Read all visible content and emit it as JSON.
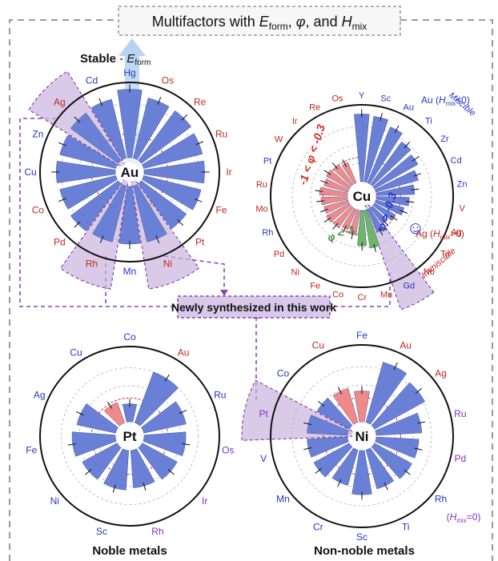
{
  "header": {
    "title": "Multifactors with ",
    "t_E": "E",
    "t_Esub": "form",
    "t_sep1": ", ",
    "t_phi": "φ",
    "t_sep2": ", and ",
    "t_H": "H",
    "t_Hsub": "mix"
  },
  "stable": {
    "label": "Stable",
    "minus": " - ",
    "E": "E",
    "sub": "form"
  },
  "center_box": {
    "label": "Newly synthesized in this work"
  },
  "captions": {
    "noble": "Noble metals",
    "non_noble": "Non-noble metals"
  },
  "colors": {
    "blue_bar": "#6a7fd6",
    "red_bar": "#f08a8a",
    "green_bar": "#6cb865",
    "highlight": "#c9b4dd",
    "dash_purple": "#8a45b8",
    "frame_gray": "#9a9a9a",
    "red_label": "#c0281e",
    "blue_label": "#2635c8",
    "purple_label": "#8a2fb8"
  },
  "legend_cu": {
    "miscible": "Miscible",
    "au_h": "Au (",
    "au_h_H": "H",
    "au_h_sub": "mix",
    "au_h_tail": "<0)",
    "ag_h": "Ag (",
    "ag_h_H": "H",
    "ag_h_sub": "mix",
    "ag_h_tail": ">0)",
    "immiscible": "Immiscible",
    "phi_mid": "-1 < φ < -0.3",
    "phi_high": "φ > -0.3",
    "phi_low": "φ < -1",
    "smiley": "☺"
  },
  "pd_note": {
    "label": "Pd",
    "h": "(",
    "H": "H",
    "sub": "mix",
    "tail": "=0)"
  },
  "chart_data": [
    {
      "type": "radial-bar",
      "center": "Au",
      "labels": [
        "Hg",
        "Os",
        "Re",
        "Ru",
        "Ir",
        "Fe",
        "Pt",
        "Ni",
        "Mn",
        "Rh",
        "Pd",
        "Co",
        "Cu",
        "Zn",
        "Ag",
        "Cd"
      ],
      "label_colors": [
        "blue",
        "red",
        "red",
        "red",
        "red",
        "red",
        "red",
        "red",
        "blue",
        "red",
        "red",
        "red",
        "blue",
        "blue",
        "red",
        "blue"
      ],
      "series": [
        {
          "color": "blue",
          "values": [
            0.95,
            0.86,
            0.86,
            0.84,
            0.84,
            0.82,
            0.78,
            0.8,
            0.8,
            0.8,
            0.82,
            0.8,
            0.82,
            0.8,
            0.82,
            0.84
          ]
        }
      ],
      "highlight": [
        "Ag",
        "Rh",
        "Ni"
      ]
    },
    {
      "type": "radial-bar",
      "center": "Cu",
      "labels": [
        "Os",
        "Y",
        "Sc",
        "Au",
        "Ti",
        "Zr",
        "Cd",
        "Zn",
        "V",
        "Ag",
        "Ta",
        "Nb",
        "Gd",
        "Mn",
        "Cr",
        "Co",
        "Fe",
        "Ni",
        "Pd",
        "Rh",
        "Mo",
        "Ru",
        "Pt",
        "W",
        "Ir",
        "Re"
      ],
      "label_colors": [
        "red",
        "blue",
        "blue",
        "blue",
        "blue",
        "blue",
        "blue",
        "blue",
        "red",
        "red",
        "red",
        "red",
        "blue",
        "red",
        "red",
        "red",
        "red",
        "red",
        "red",
        "blue",
        "red",
        "red",
        "blue",
        "red",
        "red",
        "red"
      ],
      "series": [
        {
          "name": "φ > -0.3",
          "color": "blue",
          "values": [
            0,
            0.92,
            0.9,
            0.82,
            0.72,
            0.68,
            0.6,
            0.52,
            0.45,
            0.4,
            0.32,
            0.28,
            0.34,
            0,
            0,
            0,
            0,
            0,
            0,
            0,
            0,
            0,
            0,
            0,
            0,
            0
          ]
        },
        {
          "name": "-1 < φ < -0.3",
          "color": "red",
          "values": [
            0,
            0,
            0,
            0,
            0,
            0,
            0,
            0,
            0,
            0,
            0,
            0,
            0,
            0.3,
            0.32,
            0.34,
            0.3,
            0.34,
            0.36,
            0.34,
            0.36,
            0.38,
            0.34,
            0.36,
            0.34,
            0.3
          ]
        },
        {
          "name": "φ < -1",
          "color": "green",
          "values": [
            0,
            0,
            0,
            0,
            0,
            0,
            0,
            0,
            0,
            0,
            0,
            0,
            0,
            0.52,
            0.48,
            0,
            0,
            0,
            0,
            0,
            0,
            0,
            0,
            0,
            0,
            0
          ]
        }
      ],
      "highlight": [
        "Gd"
      ]
    },
    {
      "type": "radial-bar",
      "center": "Pt",
      "labels": [
        "Co",
        "Au",
        "Ru",
        "Os",
        "Ir",
        "Rh",
        "Sc",
        "Ni",
        "Fe",
        "Ag",
        "Cu"
      ],
      "label_colors": [
        "blue",
        "red",
        "blue",
        "purple",
        "purple",
        "purple",
        "blue",
        "blue",
        "blue",
        "blue",
        "blue"
      ],
      "series": [
        {
          "color": "blue",
          "values": [
            0.25,
            0.75,
            0.6,
            0.58,
            0.55,
            0.52,
            0.55,
            0.55,
            0.6,
            0.55,
            0
          ]
        },
        {
          "color": "red",
          "values": [
            0,
            0,
            0,
            0,
            0,
            0,
            0,
            0,
            0,
            0,
            0.3
          ]
        }
      ]
    },
    {
      "type": "radial-bar",
      "center": "Ni",
      "labels": [
        "Fe",
        "Au",
        "Ag",
        "Ru",
        "Pd",
        "Rh",
        "Ti",
        "Sc",
        "Cr",
        "Mn",
        "V",
        "Pt",
        "Co",
        "Cu"
      ],
      "label_colors": [
        "blue",
        "red",
        "red",
        "purple",
        "purple",
        "blue",
        "blue",
        "blue",
        "blue",
        "blue",
        "blue",
        "purple",
        "blue",
        "red"
      ],
      "series": [
        {
          "color": "blue",
          "values": [
            0,
            0.85,
            0.78,
            0.62,
            0.58,
            0.58,
            0.55,
            0.6,
            0.5,
            0.55,
            0.55,
            0.55,
            0.5,
            0
          ]
        },
        {
          "color": "red",
          "values": [
            0.42,
            0,
            0,
            0,
            0,
            0,
            0,
            0,
            0,
            0,
            0,
            0,
            0,
            0.48
          ]
        }
      ],
      "highlight": [
        "Pt"
      ]
    }
  ]
}
